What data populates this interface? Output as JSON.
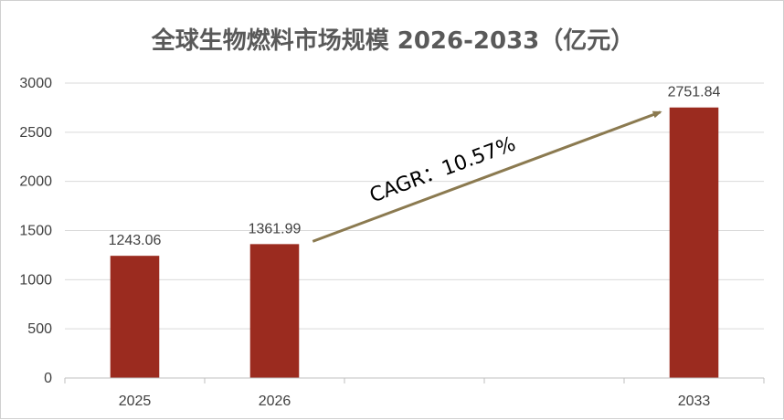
{
  "chart_data": {
    "type": "bar",
    "title": "全球生物燃料市场规模 2026-2033（亿元）",
    "categories": [
      "2025",
      "2026",
      "",
      "",
      "2033"
    ],
    "values": [
      1243.06,
      1361.99,
      null,
      null,
      2751.84
    ],
    "data_labels": [
      "1243.06",
      "1361.99",
      "",
      "",
      "2751.84"
    ],
    "ylim": [
      0,
      3000
    ],
    "yticks": [
      "0",
      "500",
      "1000",
      "1500",
      "2000",
      "2500",
      "3000"
    ],
    "grid": true,
    "legend": "none",
    "bar_color": "#9b2b1f",
    "annotation": {
      "text": "CAGR：10.57%",
      "arrow_color": "#8b7a50",
      "from_category": "2026",
      "to_category": "2033"
    }
  }
}
